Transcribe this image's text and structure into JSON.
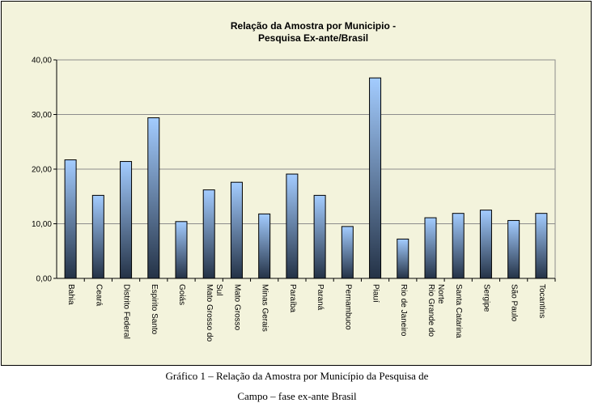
{
  "chart_data": {
    "type": "bar",
    "title_lines": [
      "Relação da Amostra por Municipio -",
      "Pesquisa Ex-ante/Brasil"
    ],
    "xlabel": "",
    "ylabel": "",
    "ylim": [
      0,
      40
    ],
    "yticks": [
      "0,00",
      "10,00",
      "20,00",
      "30,00",
      "40,00"
    ],
    "ytick_values": [
      0,
      10,
      20,
      30,
      40
    ],
    "grid": true,
    "legend": "none",
    "categories": [
      [
        "Bahia"
      ],
      [
        "Ceará"
      ],
      [
        "Distrito Federal"
      ],
      [
        "Espirito Santo"
      ],
      [
        "Goiás"
      ],
      [
        "Mato Grosso do",
        "Sul"
      ],
      [
        "Mato Grosso"
      ],
      [
        "Minas Gerais"
      ],
      [
        "Paraíba"
      ],
      [
        "Paraná"
      ],
      [
        "Pernambuco"
      ],
      [
        "Piauí"
      ],
      [
        "Rio de Janeiro"
      ],
      [
        "Rio Grande do",
        "Norte"
      ],
      [
        "Santa Catarina"
      ],
      [
        "Sergipe"
      ],
      [
        "São Paulo"
      ],
      [
        "Tocantins"
      ]
    ],
    "values": [
      21.7,
      15.2,
      21.4,
      29.4,
      10.4,
      16.2,
      17.6,
      11.8,
      19.1,
      15.2,
      9.5,
      36.7,
      7.2,
      11.1,
      11.9,
      12.5,
      10.6,
      11.9
    ],
    "colors": {
      "plot_background": "#f3f3dc",
      "bar_top": "#a3ccff",
      "bar_bottom": "#243246",
      "gridline": "#8c8c8c"
    }
  },
  "caption": {
    "line1": "Gráfico 1 – Relação da Amostra por Município da Pesquisa de",
    "line2": "Campo – fase ex-ante Brasil"
  }
}
